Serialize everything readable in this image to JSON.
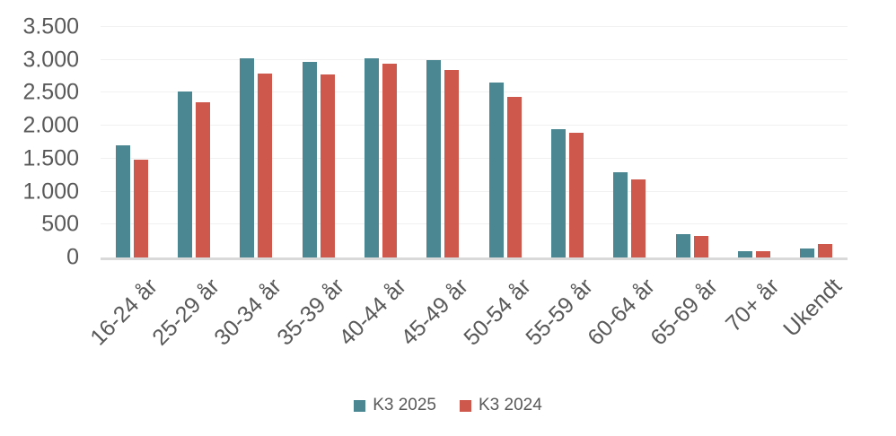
{
  "chart_data": {
    "type": "bar",
    "title": "",
    "categories": [
      "16-24 år",
      "25-29 år",
      "30-34 år",
      "35-39 år",
      "40-44 år",
      "45-49 år",
      "50-54 år",
      "55-59 år",
      "60-64 år",
      "65-69 år",
      "70+ år",
      "Ukendt"
    ],
    "series": [
      {
        "name": "K3 2025",
        "color": "#4A8793",
        "values": [
          1700,
          2520,
          3030,
          2970,
          3020,
          3000,
          2650,
          1950,
          1290,
          360,
          90,
          130
        ]
      },
      {
        "name": "K3 2024",
        "color": "#CE584C",
        "values": [
          1490,
          2360,
          2790,
          2780,
          2940,
          2850,
          2440,
          1900,
          1180,
          330,
          100,
          200
        ]
      }
    ],
    "xlabel": "",
    "ylabel": "",
    "ylim": [
      0,
      3500
    ],
    "y_tick_values": [
      0,
      500,
      1000,
      1500,
      2000,
      2500,
      3000,
      3500
    ],
    "y_tick_labels": [
      "0",
      "500",
      "1.000",
      "1.500",
      "2.000",
      "2.500",
      "3.000",
      "3.500"
    ],
    "grid": "horizontal",
    "legend_position": "bottom",
    "colors": {
      "axis_line": "#d9d9d9",
      "gridline": "#f1f1f1",
      "text": "#595959",
      "background": "#ffffff"
    }
  }
}
